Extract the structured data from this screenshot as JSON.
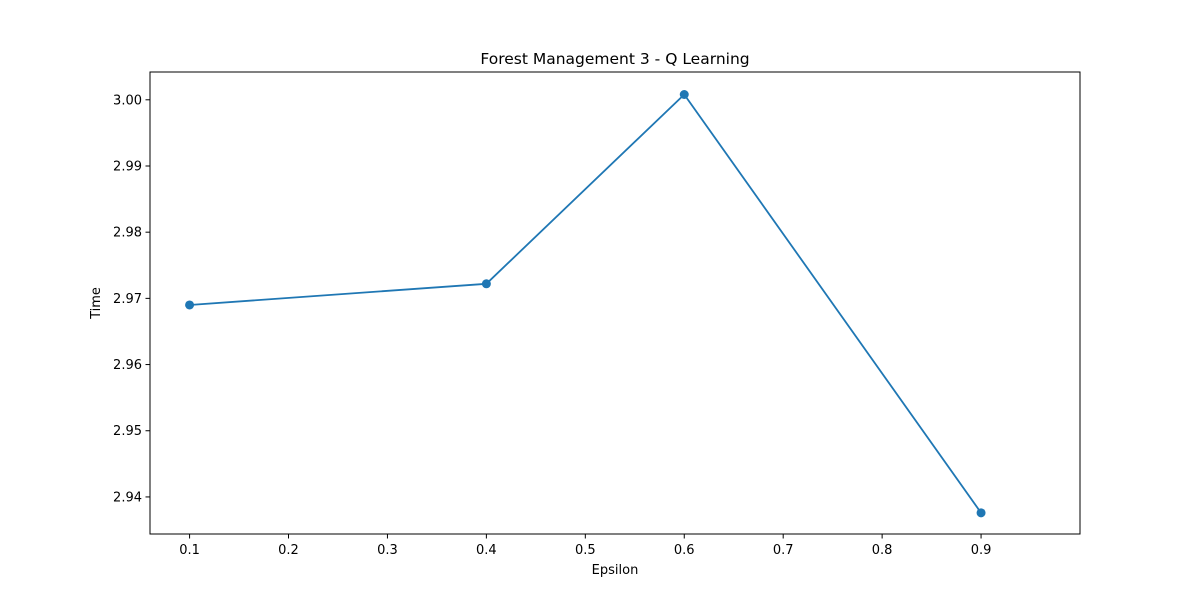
{
  "chart_data": {
    "type": "line",
    "title": "Forest Management 3 - Q Learning",
    "xlabel": "Epsilon",
    "ylabel": "Time",
    "x": [
      0.1,
      0.4,
      0.6,
      0.9
    ],
    "series": [
      {
        "values": [
          2.969,
          2.9722,
          3.0008,
          2.9376
        ],
        "color": "#1f77b4",
        "marker": "circle"
      }
    ],
    "xlim": [
      0.06,
      1.0
    ],
    "ylim": [
      2.9344,
      3.0042
    ],
    "xticks": [
      0.1,
      0.2,
      0.3,
      0.4,
      0.5,
      0.6,
      0.7,
      0.8,
      0.9
    ],
    "xtick_labels": [
      "0.1",
      "0.2",
      "0.3",
      "0.4",
      "0.5",
      "0.6",
      "0.7",
      "0.8",
      "0.9"
    ],
    "yticks": [
      2.94,
      2.95,
      2.96,
      2.97,
      2.98,
      2.99,
      3.0
    ],
    "ytick_labels": [
      "2.94",
      "2.95",
      "2.96",
      "2.97",
      "2.98",
      "2.99",
      "3.00"
    ],
    "grid": false,
    "legend": "none"
  }
}
